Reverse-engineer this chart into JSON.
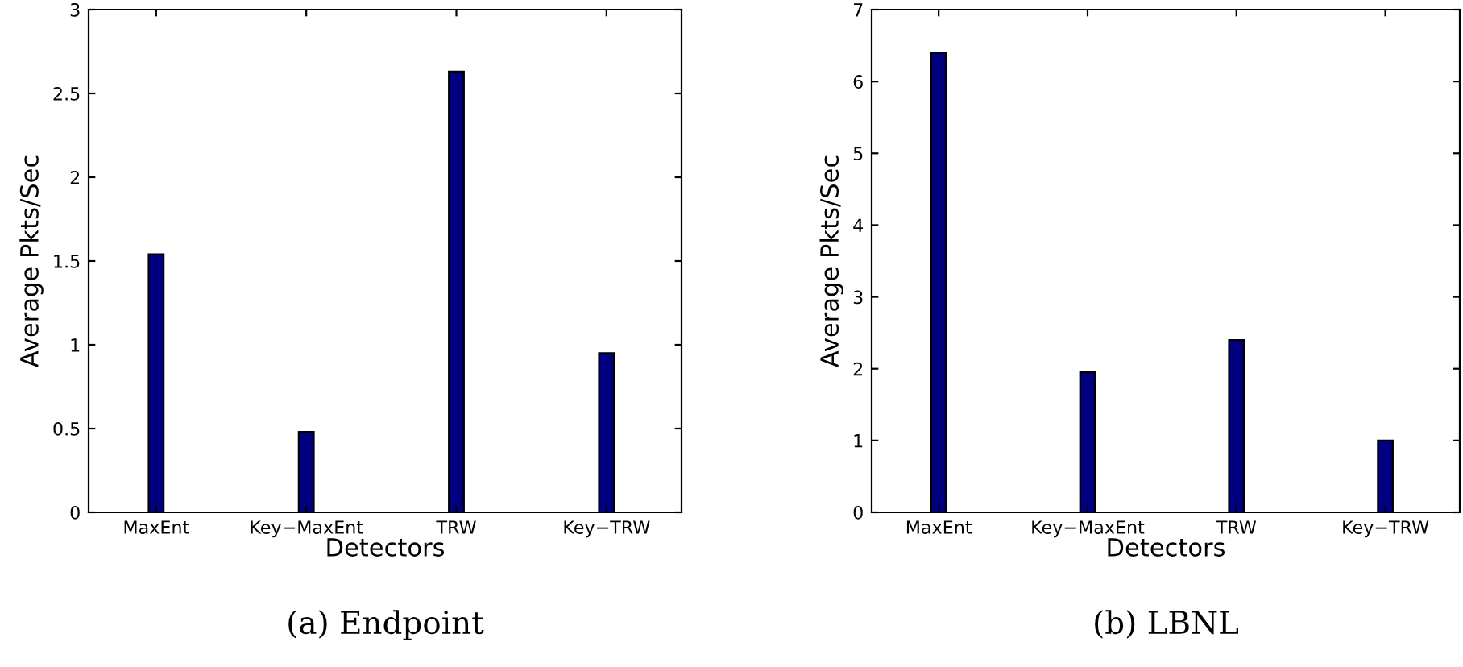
{
  "chart_data": [
    {
      "type": "bar",
      "categories": [
        "MaxEnt",
        "Key−MaxEnt",
        "TRW",
        "Key−TRW"
      ],
      "values": [
        1.54,
        0.48,
        2.63,
        0.95
      ],
      "color": "#000080",
      "xlabel": "Detectors",
      "ylabel": "Average Pkts/Sec",
      "ylim": [
        0,
        3
      ],
      "yticks": [
        0,
        0.5,
        1,
        1.5,
        2,
        2.5,
        3
      ],
      "annotations": [
        "(a) Endpoint"
      ]
    },
    {
      "type": "bar",
      "categories": [
        "MaxEnt",
        "Key−MaxEnt",
        "TRW",
        "Key−TRW"
      ],
      "values": [
        6.4,
        1.95,
        2.4,
        1.0
      ],
      "color": "#000080",
      "xlabel": "Detectors",
      "ylabel": "Average Pkts/Sec",
      "ylim": [
        0,
        7
      ],
      "yticks": [
        0,
        1,
        2,
        3,
        4,
        5,
        6,
        7
      ],
      "annotations": [
        "(b) LBNL"
      ]
    }
  ]
}
